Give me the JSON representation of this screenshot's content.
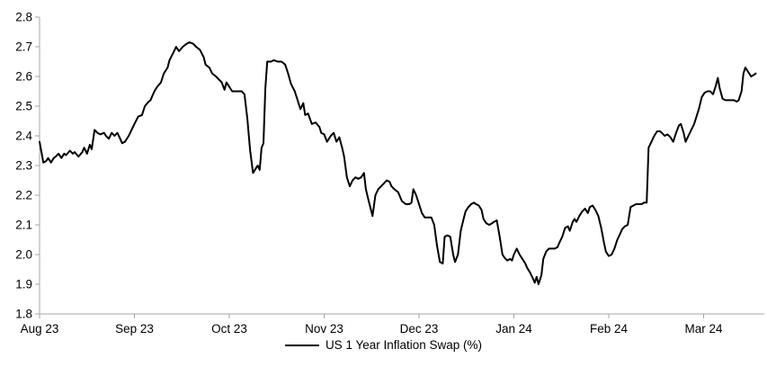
{
  "chart_data": {
    "type": "line",
    "title": "",
    "legend": {
      "label": "US 1 Year Inflation Swap (%)",
      "position": "bottom-center"
    },
    "series_color": "#000000",
    "axis_color": "#a6a6a6",
    "grid": false,
    "x_tick_labels": [
      "Aug 23",
      "Sep 23",
      "Oct 23",
      "Nov 23",
      "Dec 23",
      "Jan 24",
      "Feb 24",
      "Mar 24"
    ],
    "y_tick_labels": [
      "2.8",
      "2.7",
      "2.6",
      "2.5",
      "2.4",
      "2.3",
      "2.2",
      "2.1",
      "2.0",
      "1.9",
      "1.8"
    ],
    "ylim": [
      1.8,
      2.8
    ],
    "x_note": "t = months after the Aug 23 tick (0 = Aug 23 ... 7 = Mar 24)",
    "points": [
      [
        0,
        2.38
      ],
      [
        0.02,
        2.345
      ],
      [
        0.04,
        2.31
      ],
      [
        0.07,
        2.315
      ],
      [
        0.09,
        2.325
      ],
      [
        0.12,
        2.31
      ],
      [
        0.15,
        2.325
      ],
      [
        0.17,
        2.33
      ],
      [
        0.2,
        2.34
      ],
      [
        0.23,
        2.325
      ],
      [
        0.26,
        2.34
      ],
      [
        0.28,
        2.335
      ],
      [
        0.32,
        2.35
      ],
      [
        0.35,
        2.34
      ],
      [
        0.37,
        2.345
      ],
      [
        0.41,
        2.33
      ],
      [
        0.45,
        2.345
      ],
      [
        0.47,
        2.36
      ],
      [
        0.5,
        2.34
      ],
      [
        0.53,
        2.37
      ],
      [
        0.55,
        2.355
      ],
      [
        0.58,
        2.42
      ],
      [
        0.61,
        2.41
      ],
      [
        0.64,
        2.405
      ],
      [
        0.68,
        2.41
      ],
      [
        0.7,
        2.4
      ],
      [
        0.73,
        2.39
      ],
      [
        0.76,
        2.41
      ],
      [
        0.79,
        2.4
      ],
      [
        0.82,
        2.41
      ],
      [
        0.85,
        2.39
      ],
      [
        0.87,
        2.375
      ],
      [
        0.9,
        2.38
      ],
      [
        0.94,
        2.4
      ],
      [
        0.97,
        2.42
      ],
      [
        1,
        2.44
      ],
      [
        1.04,
        2.465
      ],
      [
        1.08,
        2.47
      ],
      [
        1.11,
        2.5
      ],
      [
        1.15,
        2.515
      ],
      [
        1.17,
        2.52
      ],
      [
        1.21,
        2.55
      ],
      [
        1.24,
        2.565
      ],
      [
        1.28,
        2.58
      ],
      [
        1.31,
        2.61
      ],
      [
        1.35,
        2.63
      ],
      [
        1.37,
        2.655
      ],
      [
        1.41,
        2.68
      ],
      [
        1.44,
        2.7
      ],
      [
        1.47,
        2.685
      ],
      [
        1.51,
        2.7
      ],
      [
        1.55,
        2.71
      ],
      [
        1.58,
        2.715
      ],
      [
        1.62,
        2.71
      ],
      [
        1.65,
        2.7
      ],
      [
        1.69,
        2.69
      ],
      [
        1.73,
        2.665
      ],
      [
        1.75,
        2.64
      ],
      [
        1.79,
        2.63
      ],
      [
        1.82,
        2.61
      ],
      [
        1.86,
        2.6
      ],
      [
        1.89,
        2.59
      ],
      [
        1.92,
        2.58
      ],
      [
        1.95,
        2.555
      ],
      [
        1.97,
        2.58
      ],
      [
        2,
        2.565
      ],
      [
        2.03,
        2.55
      ],
      [
        2.07,
        2.55
      ],
      [
        2.11,
        2.55
      ],
      [
        2.13,
        2.55
      ],
      [
        2.16,
        2.54
      ],
      [
        2.19,
        2.46
      ],
      [
        2.22,
        2.35
      ],
      [
        2.25,
        2.275
      ],
      [
        2.28,
        2.29
      ],
      [
        2.3,
        2.3
      ],
      [
        2.32,
        2.285
      ],
      [
        2.34,
        2.36
      ],
      [
        2.36,
        2.375
      ],
      [
        2.38,
        2.56
      ],
      [
        2.4,
        2.65
      ],
      [
        2.44,
        2.65
      ],
      [
        2.47,
        2.655
      ],
      [
        2.51,
        2.65
      ],
      [
        2.55,
        2.65
      ],
      [
        2.59,
        2.64
      ],
      [
        2.62,
        2.61
      ],
      [
        2.65,
        2.575
      ],
      [
        2.69,
        2.55
      ],
      [
        2.72,
        2.52
      ],
      [
        2.75,
        2.49
      ],
      [
        2.78,
        2.51
      ],
      [
        2.8,
        2.47
      ],
      [
        2.83,
        2.475
      ],
      [
        2.87,
        2.44
      ],
      [
        2.91,
        2.445
      ],
      [
        2.95,
        2.43
      ],
      [
        2.97,
        2.41
      ],
      [
        3,
        2.405
      ],
      [
        3.03,
        2.38
      ],
      [
        3.07,
        2.4
      ],
      [
        3.1,
        2.41
      ],
      [
        3.13,
        2.38
      ],
      [
        3.16,
        2.395
      ],
      [
        3.19,
        2.36
      ],
      [
        3.21,
        2.33
      ],
      [
        3.24,
        2.26
      ],
      [
        3.27,
        2.23
      ],
      [
        3.3,
        2.25
      ],
      [
        3.33,
        2.26
      ],
      [
        3.36,
        2.255
      ],
      [
        3.39,
        2.26
      ],
      [
        3.42,
        2.275
      ],
      [
        3.44,
        2.22
      ],
      [
        3.47,
        2.18
      ],
      [
        3.51,
        2.13
      ],
      [
        3.54,
        2.2
      ],
      [
        3.57,
        2.22
      ],
      [
        3.6,
        2.23
      ],
      [
        3.63,
        2.24
      ],
      [
        3.66,
        2.25
      ],
      [
        3.69,
        2.245
      ],
      [
        3.71,
        2.23
      ],
      [
        3.74,
        2.22
      ],
      [
        3.78,
        2.21
      ],
      [
        3.82,
        2.18
      ],
      [
        3.86,
        2.17
      ],
      [
        3.9,
        2.17
      ],
      [
        3.92,
        2.175
      ],
      [
        3.94,
        2.22
      ],
      [
        3.97,
        2.2
      ],
      [
        4,
        2.17
      ],
      [
        4.03,
        2.14
      ],
      [
        4.06,
        2.125
      ],
      [
        4.09,
        2.125
      ],
      [
        4.13,
        2.125
      ],
      [
        4.16,
        2.1
      ],
      [
        4.19,
        2.03
      ],
      [
        4.22,
        1.975
      ],
      [
        4.25,
        1.97
      ],
      [
        4.27,
        2.06
      ],
      [
        4.3,
        2.065
      ],
      [
        4.33,
        2.06
      ],
      [
        4.36,
        2
      ],
      [
        4.38,
        1.975
      ],
      [
        4.41,
        2
      ],
      [
        4.44,
        2.08
      ],
      [
        4.47,
        2.12
      ],
      [
        4.49,
        2.145
      ],
      [
        4.52,
        2.16
      ],
      [
        4.55,
        2.17
      ],
      [
        4.58,
        2.175
      ],
      [
        4.6,
        2.17
      ],
      [
        4.63,
        2.165
      ],
      [
        4.66,
        2.15
      ],
      [
        4.68,
        2.12
      ],
      [
        4.71,
        2.105
      ],
      [
        4.74,
        2.1
      ],
      [
        4.77,
        2.105
      ],
      [
        4.79,
        2.11
      ],
      [
        4.82,
        2.115
      ],
      [
        4.85,
        2.06
      ],
      [
        4.88,
        2
      ],
      [
        4.9,
        1.99
      ],
      [
        4.93,
        1.98
      ],
      [
        4.96,
        1.985
      ],
      [
        4.98,
        1.98
      ],
      [
        5,
        2
      ],
      [
        5.03,
        2.02
      ],
      [
        5.06,
        2
      ],
      [
        5.09,
        1.985
      ],
      [
        5.12,
        1.97
      ],
      [
        5.14,
        1.955
      ],
      [
        5.17,
        1.94
      ],
      [
        5.2,
        1.92
      ],
      [
        5.22,
        1.905
      ],
      [
        5.24,
        1.925
      ],
      [
        5.26,
        1.9
      ],
      [
        5.29,
        1.93
      ],
      [
        5.31,
        1.985
      ],
      [
        5.34,
        2.01
      ],
      [
        5.37,
        2.02
      ],
      [
        5.4,
        2.02
      ],
      [
        5.43,
        2.02
      ],
      [
        5.46,
        2.025
      ],
      [
        5.48,
        2.04
      ],
      [
        5.51,
        2.06
      ],
      [
        5.54,
        2.09
      ],
      [
        5.57,
        2.095
      ],
      [
        5.59,
        2.08
      ],
      [
        5.62,
        2.11
      ],
      [
        5.64,
        2.12
      ],
      [
        5.66,
        2.11
      ],
      [
        5.69,
        2.13
      ],
      [
        5.72,
        2.145
      ],
      [
        5.75,
        2.155
      ],
      [
        5.78,
        2.14
      ],
      [
        5.8,
        2.16
      ],
      [
        5.83,
        2.165
      ],
      [
        5.86,
        2.15
      ],
      [
        5.89,
        2.13
      ],
      [
        5.92,
        2.09
      ],
      [
        5.95,
        2.04
      ],
      [
        5.97,
        2.01
      ],
      [
        6,
        1.995
      ],
      [
        6.03,
        2
      ],
      [
        6.06,
        2.02
      ],
      [
        6.09,
        2.05
      ],
      [
        6.12,
        2.07
      ],
      [
        6.14,
        2.085
      ],
      [
        6.17,
        2.095
      ],
      [
        6.2,
        2.1
      ],
      [
        6.23,
        2.16
      ],
      [
        6.26,
        2.165
      ],
      [
        6.29,
        2.17
      ],
      [
        6.32,
        2.17
      ],
      [
        6.35,
        2.17
      ],
      [
        6.37,
        2.175
      ],
      [
        6.4,
        2.175
      ],
      [
        6.42,
        2.36
      ],
      [
        6.45,
        2.38
      ],
      [
        6.48,
        2.4
      ],
      [
        6.51,
        2.415
      ],
      [
        6.54,
        2.415
      ],
      [
        6.56,
        2.41
      ],
      [
        6.59,
        2.4
      ],
      [
        6.62,
        2.405
      ],
      [
        6.65,
        2.395
      ],
      [
        6.68,
        2.38
      ],
      [
        6.71,
        2.41
      ],
      [
        6.74,
        2.435
      ],
      [
        6.76,
        2.44
      ],
      [
        6.79,
        2.41
      ],
      [
        6.81,
        2.38
      ],
      [
        6.84,
        2.4
      ],
      [
        6.87,
        2.42
      ],
      [
        6.9,
        2.44
      ],
      [
        6.93,
        2.47
      ],
      [
        6.95,
        2.49
      ],
      [
        6.98,
        2.53
      ],
      [
        7.01,
        2.545
      ],
      [
        7.04,
        2.55
      ],
      [
        7.07,
        2.55
      ],
      [
        7.1,
        2.54
      ],
      [
        7.13,
        2.57
      ],
      [
        7.15,
        2.595
      ],
      [
        7.17,
        2.56
      ],
      [
        7.2,
        2.525
      ],
      [
        7.23,
        2.52
      ],
      [
        7.26,
        2.52
      ],
      [
        7.29,
        2.52
      ],
      [
        7.32,
        2.52
      ],
      [
        7.35,
        2.515
      ],
      [
        7.37,
        2.52
      ],
      [
        7.4,
        2.55
      ],
      [
        7.42,
        2.61
      ],
      [
        7.44,
        2.63
      ],
      [
        7.47,
        2.615
      ],
      [
        7.5,
        2.6
      ],
      [
        7.53,
        2.605
      ],
      [
        7.55,
        2.61
      ]
    ]
  }
}
